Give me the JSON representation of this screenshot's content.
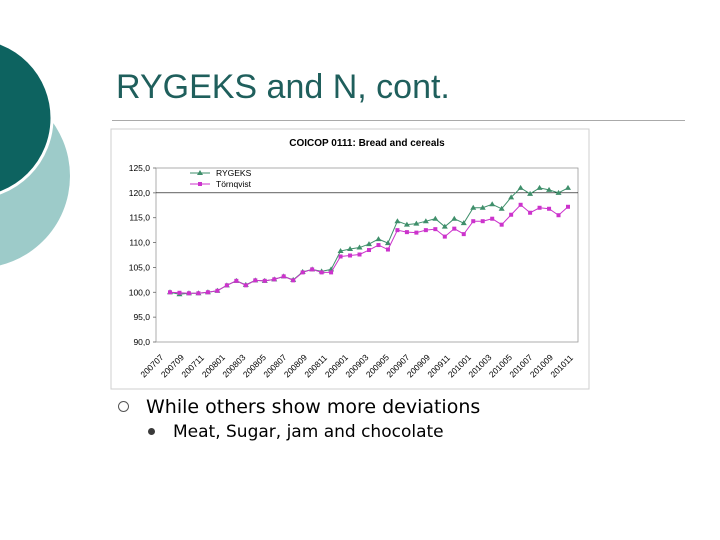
{
  "slide": {
    "title": "RYGEKS and N, cont.",
    "bullets": [
      {
        "text": "While others show more deviations",
        "level": 1
      },
      {
        "text": "Meat, Sugar, jam and chocolate",
        "level": 2
      }
    ],
    "theme_colors": {
      "dark_teal": "#0d6360",
      "light_teal": "#9dcbc9",
      "title_text": "#1f5f5c"
    }
  },
  "chart_data": {
    "type": "line",
    "title": "COICOP 0111: Bread and cereals",
    "xlabel": "",
    "ylabel": "",
    "ylim": [
      90,
      125
    ],
    "yticks": [
      "90,0",
      "95,0",
      "100,0",
      "105,0",
      "110,0",
      "115,0",
      "120,0",
      "125,0"
    ],
    "grid": false,
    "legend_position": "top-left",
    "x_tick_labels": [
      "200707",
      "200709",
      "200711",
      "200801",
      "200803",
      "200805",
      "200807",
      "200809",
      "200811",
      "200901",
      "200903",
      "200905",
      "200907",
      "200909",
      "200911",
      "201001",
      "201003",
      "201005",
      "201007",
      "201009",
      "201011"
    ],
    "series": [
      {
        "name": "RYGEKS",
        "color": "#3f8f6b",
        "marker": "triangle",
        "values": [
          100.0,
          99.6,
          99.8,
          99.8,
          100.0,
          100.3,
          101.4,
          102.3,
          101.5,
          102.4,
          102.3,
          102.6,
          103.2,
          102.5,
          104.1,
          104.6,
          104.2,
          104.6,
          108.3,
          108.7,
          109.0,
          109.7,
          110.7,
          109.9,
          114.3,
          113.6,
          113.8,
          114.3,
          114.8,
          113.2,
          114.8,
          113.9,
          117.0,
          117.0,
          117.7,
          116.8,
          119.1,
          121.0,
          119.8,
          121.0,
          120.6,
          120.0,
          121.0
        ]
      },
      {
        "name": "Törnqvist",
        "color": "#cc33cc",
        "marker": "square",
        "values": [
          100.0,
          99.9,
          99.8,
          99.8,
          100.0,
          100.3,
          101.4,
          102.3,
          101.4,
          102.4,
          102.3,
          102.6,
          103.2,
          102.4,
          104.0,
          104.6,
          104.0,
          104.0,
          107.2,
          107.4,
          107.6,
          108.5,
          109.5,
          108.6,
          112.5,
          112.1,
          112.0,
          112.5,
          112.7,
          111.2,
          112.8,
          111.7,
          114.3,
          114.3,
          114.8,
          113.6,
          115.6,
          117.6,
          116.0,
          117.0,
          116.8,
          115.5,
          117.2
        ]
      }
    ]
  }
}
